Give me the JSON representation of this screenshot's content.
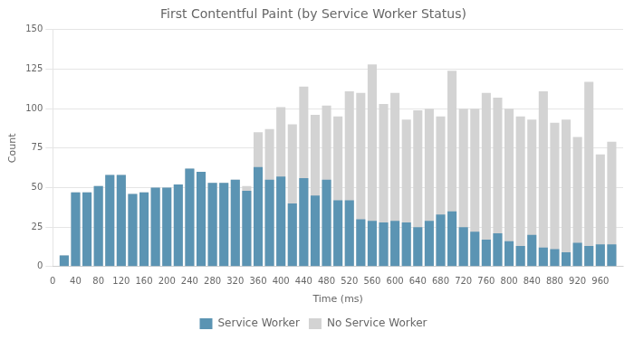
{
  "chart_data": {
    "type": "bar",
    "title": "First Contentful Paint (by Service Worker Status)",
    "xlabel": "Time (ms)",
    "ylabel": "Count",
    "x": [
      20,
      40,
      60,
      80,
      100,
      120,
      140,
      160,
      180,
      200,
      220,
      240,
      260,
      280,
      300,
      320,
      340,
      360,
      380,
      400,
      420,
      440,
      460,
      480,
      500,
      520,
      540,
      560,
      580,
      600,
      620,
      640,
      660,
      680,
      700,
      720,
      740,
      760,
      780,
      800,
      820,
      840,
      860,
      880,
      900,
      920,
      940,
      960,
      980
    ],
    "series": [
      {
        "name": "Service Worker",
        "color": "#5b94b3",
        "values": [
          7,
          47,
          47,
          51,
          58,
          58,
          46,
          47,
          50,
          50,
          52,
          62,
          60,
          53,
          53,
          55,
          48,
          63,
          55,
          57,
          40,
          56,
          45,
          55,
          42,
          42,
          30,
          29,
          28,
          29,
          28,
          25,
          29,
          33,
          35,
          25,
          22,
          17,
          21,
          16,
          13,
          20,
          12,
          11,
          9,
          15,
          13,
          14,
          14
        ]
      },
      {
        "name": "No Service Worker",
        "color": "#d3d3d3",
        "values": [
          7,
          47,
          47,
          51,
          58,
          58,
          46,
          47,
          50,
          50,
          52,
          62,
          60,
          53,
          53,
          55,
          51,
          85,
          87,
          101,
          90,
          114,
          96,
          102,
          95,
          111,
          110,
          128,
          103,
          110,
          93,
          99,
          100,
          95,
          124,
          100,
          100,
          110,
          107,
          100,
          95,
          93,
          111,
          91,
          93,
          82,
          117,
          71,
          79
        ]
      }
    ],
    "xlim": [
      0,
      1000
    ],
    "xticks": [
      0,
      40,
      80,
      120,
      160,
      200,
      240,
      280,
      320,
      360,
      400,
      440,
      480,
      520,
      560,
      600,
      640,
      680,
      720,
      760,
      800,
      840,
      880,
      920,
      960
    ],
    "ylim": [
      0,
      150
    ],
    "yticks": [
      0,
      25,
      50,
      75,
      100,
      125,
      150
    ],
    "grid": true,
    "legend": "bottom"
  }
}
